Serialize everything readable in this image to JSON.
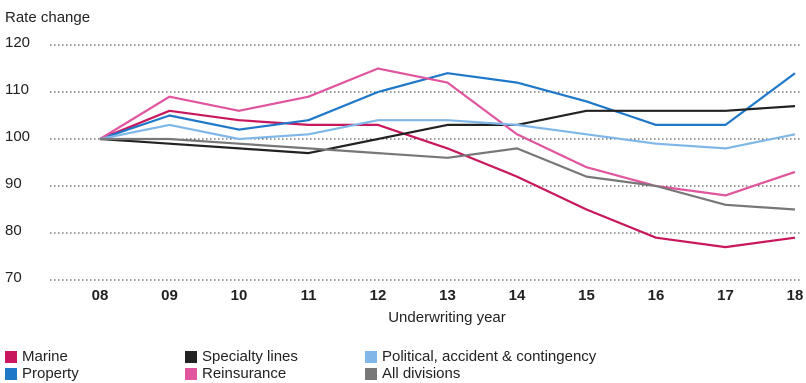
{
  "chart_data": {
    "type": "line",
    "y_label": "Rate change",
    "x_label": "Underwriting year",
    "categories": [
      "08",
      "09",
      "10",
      "11",
      "12",
      "13",
      "14",
      "15",
      "16",
      "17",
      "18"
    ],
    "ylim": [
      70,
      120
    ],
    "yticks": [
      70,
      80,
      90,
      100,
      110,
      120
    ],
    "grid": true,
    "series": [
      {
        "name": "Marine",
        "color": "#c8175d",
        "values": [
          100,
          106,
          104,
          103,
          103,
          98,
          92,
          85,
          79,
          77,
          79
        ]
      },
      {
        "name": "Property",
        "color": "#1f78c8",
        "values": [
          100,
          105,
          102,
          104,
          110,
          114,
          112,
          108,
          103,
          103,
          114
        ]
      },
      {
        "name": "Specialty lines",
        "color": "#222222",
        "values": [
          100,
          99,
          98,
          97,
          100,
          103,
          103,
          106,
          106,
          106,
          107
        ]
      },
      {
        "name": "Reinsurance",
        "color": "#e0559e",
        "values": [
          100,
          109,
          106,
          109,
          115,
          112,
          101,
          94,
          90,
          88,
          93
        ]
      },
      {
        "name": "Political, accident & contingency",
        "color": "#7fb8e8",
        "values": [
          100,
          103,
          100,
          101,
          104,
          104,
          103,
          101,
          99,
          98,
          101
        ]
      },
      {
        "name": "All divisions",
        "color": "#777777",
        "values": [
          100,
          100,
          99,
          98,
          97,
          96,
          98,
          92,
          90,
          86,
          85
        ]
      }
    ]
  }
}
